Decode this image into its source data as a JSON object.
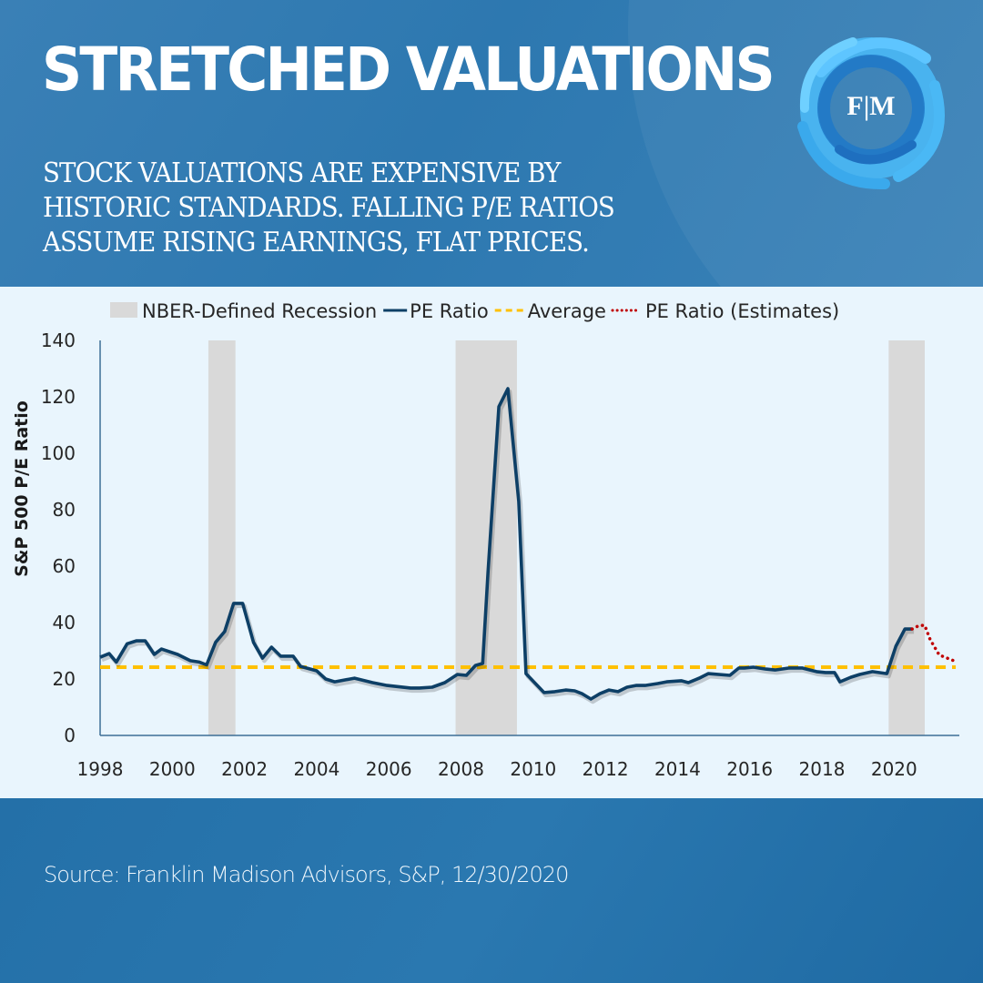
{
  "header": {
    "title": "STRETCHED VALUATIONS",
    "subtitle_lines": [
      "STOCK VALUATIONS ARE EXPENSIVE BY",
      "HISTORIC STANDARDS.  FALLING P/E RATIOS",
      "ASSUME RISING EARNINGS, FLAT PRICES."
    ],
    "logo_text": "F|M",
    "logo_icon": "swirl-ring-logo"
  },
  "footer": {
    "source": "Source: Franklin Madison Advisors, S&P, 12/30/2020"
  },
  "colors": {
    "header_bg": "#3a80b6",
    "chart_bg": "#e9f5fd",
    "pe_line": "#0d3f66",
    "average_line": "#ffc000",
    "estimates_line": "#c00000",
    "recession_fill": "#d9d9d9",
    "logo_light": "#4ab8f5",
    "logo_dark": "#1f78c8"
  },
  "chart_data": {
    "type": "line",
    "title": "",
    "xlabel": "",
    "ylabel": "S&P 500 P/E Ratio",
    "ylim": [
      0,
      140
    ],
    "xlim": [
      1998,
      2021.85
    ],
    "yticks": [
      0,
      20,
      40,
      60,
      80,
      100,
      120,
      140
    ],
    "xticks": [
      "1998",
      "2000",
      "2002",
      "2004",
      "2006",
      "2008",
      "2010",
      "2012",
      "2014",
      "2016",
      "2018",
      "2020"
    ],
    "grid": false,
    "legend_position": "top",
    "legend": [
      {
        "label": "NBER-Defined Recession",
        "kind": "box"
      },
      {
        "label": "PE Ratio",
        "kind": "solid"
      },
      {
        "label": "Average",
        "kind": "dashed"
      },
      {
        "label": "PE Ratio (Estimates)",
        "kind": "dotted"
      }
    ],
    "recessions": [
      {
        "start": 2001.0,
        "end": 2001.75
      },
      {
        "start": 2007.85,
        "end": 2009.55
      },
      {
        "start": 2019.85,
        "end": 2020.85
      }
    ],
    "average": 24.2,
    "series": [
      {
        "name": "PE Ratio",
        "x": [
          1998.0,
          1998.25,
          1998.45,
          1998.75,
          1999.0,
          1999.25,
          1999.5,
          1999.7,
          2000.15,
          2000.5,
          2000.75,
          2000.95,
          2001.2,
          2001.45,
          2001.7,
          2001.95,
          2002.25,
          2002.5,
          2002.75,
          2003.0,
          2003.35,
          2003.55,
          2004.0,
          2004.25,
          2004.5,
          2005.05,
          2005.55,
          2005.95,
          2006.6,
          2006.85,
          2007.2,
          2007.55,
          2007.9,
          2008.15,
          2008.4,
          2008.6,
          2008.75,
          2009.05,
          2009.3,
          2009.6,
          2009.8,
          2010.3,
          2010.6,
          2010.9,
          2011.15,
          2011.35,
          2011.6,
          2011.85,
          2012.1,
          2012.35,
          2012.6,
          2012.85,
          2013.1,
          2013.45,
          2013.7,
          2014.1,
          2014.3,
          2014.6,
          2014.85,
          2015.45,
          2015.7,
          2015.85,
          2016.1,
          2016.45,
          2016.7,
          2017.1,
          2017.45,
          2017.85,
          2018.1,
          2018.35,
          2018.5,
          2018.8,
          2019.05,
          2019.4,
          2019.8,
          2020.05,
          2020.3,
          2020.5
        ],
        "values": [
          27.7,
          29.0,
          26.0,
          32.5,
          33.5,
          33.5,
          28.7,
          30.6,
          28.7,
          26.5,
          26.0,
          25.0,
          33.0,
          36.8,
          46.8,
          46.8,
          33.0,
          27.4,
          31.3,
          28.1,
          28.1,
          24.5,
          22.9,
          20.0,
          19.0,
          20.3,
          18.7,
          17.7,
          16.8,
          16.8,
          17.1,
          18.7,
          21.6,
          21.3,
          24.8,
          25.5,
          58.0,
          116.5,
          122.9,
          83.0,
          21.9,
          15.2,
          15.5,
          16.1,
          15.8,
          14.8,
          12.9,
          14.8,
          16.1,
          15.5,
          17.1,
          17.7,
          17.7,
          18.4,
          19.0,
          19.4,
          18.7,
          20.3,
          21.9,
          21.3,
          23.9,
          23.9,
          24.2,
          23.5,
          23.2,
          23.9,
          23.9,
          22.6,
          22.3,
          22.3,
          19.0,
          20.6,
          21.6,
          22.6,
          21.9,
          31.6,
          37.7,
          37.7
        ]
      },
      {
        "name": "PE Ratio (Estimates)",
        "x": [
          2020.5,
          2020.7,
          2020.85,
          2021.0,
          2021.25,
          2021.55,
          2021.75
        ],
        "values": [
          37.7,
          39.0,
          39.0,
          34.0,
          28.5,
          27.0,
          26.0
        ]
      }
    ]
  }
}
